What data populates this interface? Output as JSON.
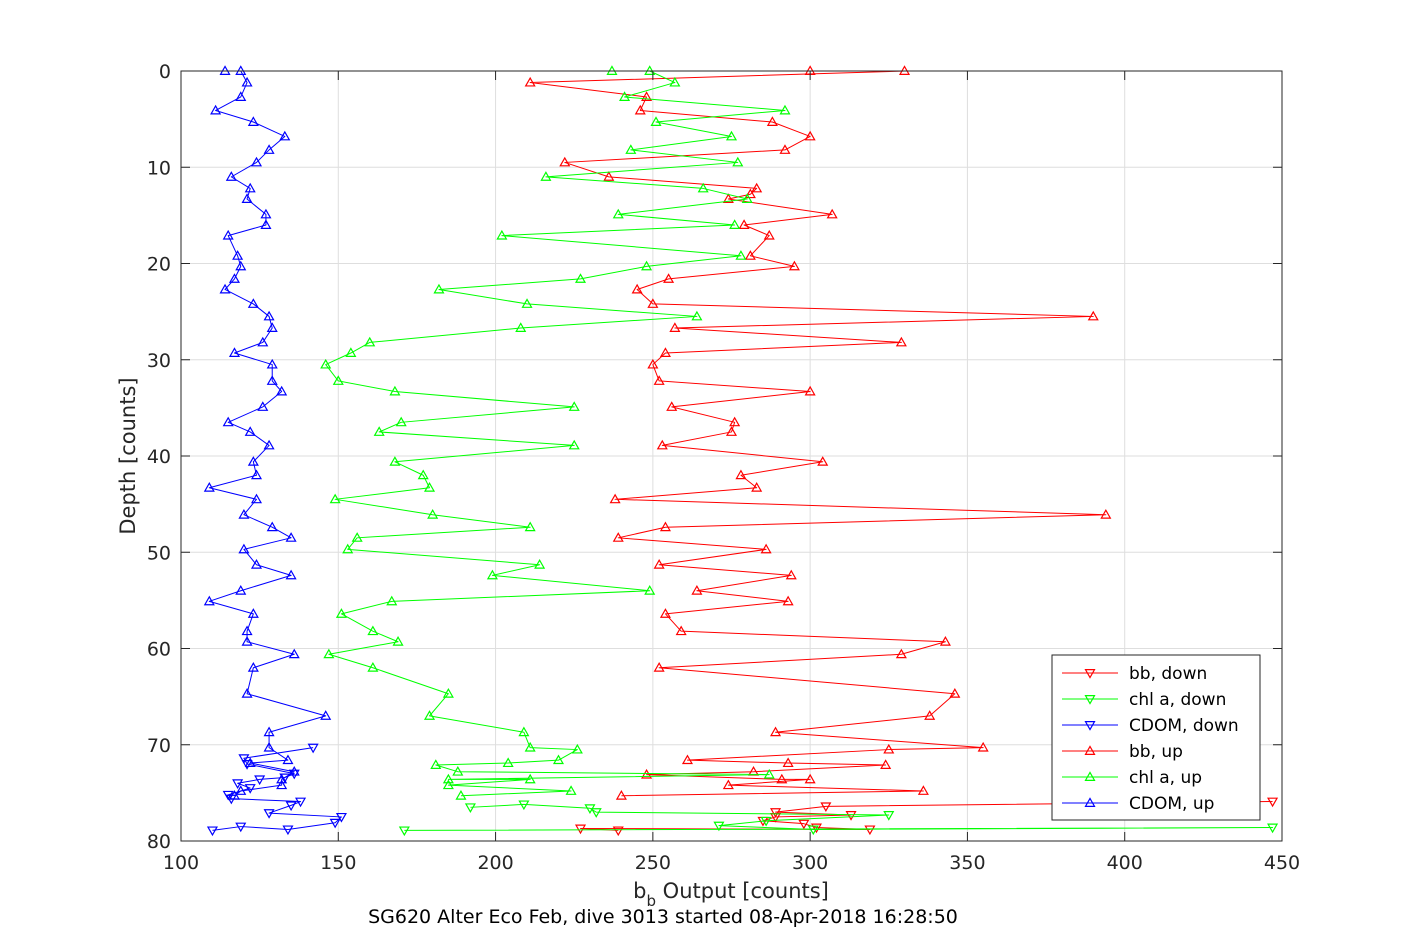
{
  "chart_data": {
    "type": "line",
    "title": "SG620 Alter Eco Feb, dive 3013 started 08-Apr-2018 16:28:50",
    "xlabel_main": "b",
    "xlabel_sub": "b",
    "xlabel_rest": " Output [counts]",
    "ylabel": "Depth [counts]",
    "xlim": [
      100,
      450
    ],
    "ylim": [
      0,
      80
    ],
    "y_reversed": true,
    "grid": true,
    "legend_position": "bottom-right",
    "xticks": [
      "100",
      "150",
      "200",
      "250",
      "300",
      "350",
      "400",
      "450"
    ],
    "yticks": [
      "0",
      "10",
      "20",
      "30",
      "40",
      "50",
      "60",
      "70",
      "80"
    ],
    "series": [
      {
        "name": "bb, down",
        "color": "#ff0000",
        "marker": "triangle-down",
        "points": [
          [
            447,
            75.9
          ],
          [
            305,
            76.4
          ],
          [
            289,
            77.0
          ],
          [
            313,
            77.3
          ],
          [
            289,
            77.5
          ],
          [
            285,
            77.9
          ],
          [
            298,
            78.2
          ],
          [
            302,
            78.6
          ],
          [
            319,
            78.8
          ],
          [
            227,
            78.7
          ],
          [
            239,
            78.9
          ]
        ]
      },
      {
        "name": "chl a, down",
        "color": "#00ff00",
        "marker": "triangle-down",
        "points": [
          [
            171,
            78.9
          ],
          [
            447,
            78.6
          ],
          [
            301,
            78.8
          ],
          [
            271,
            78.4
          ],
          [
            286,
            77.9
          ],
          [
            325,
            77.3
          ],
          [
            232,
            77.0
          ],
          [
            230,
            76.6
          ],
          [
            209,
            76.2
          ],
          [
            192,
            76.5
          ]
        ]
      },
      {
        "name": "CDOM, down",
        "color": "#0000ff",
        "marker": "triangle-down",
        "points": [
          [
            110,
            78.9
          ],
          [
            119,
            78.5
          ],
          [
            134,
            78.8
          ],
          [
            149,
            78.1
          ],
          [
            151,
            77.5
          ],
          [
            128,
            77.1
          ],
          [
            135,
            76.3
          ],
          [
            138,
            75.9
          ],
          [
            116,
            75.6
          ],
          [
            115,
            75.2
          ],
          [
            122,
            74.5
          ],
          [
            118,
            74.0
          ],
          [
            125,
            73.6
          ],
          [
            133,
            73.4
          ],
          [
            136,
            73.0
          ],
          [
            121,
            72.0
          ],
          [
            120,
            71.4
          ],
          [
            142,
            70.3
          ]
        ]
      },
      {
        "name": "bb, up",
        "color": "#ff0000",
        "marker": "triangle-up",
        "points": [
          [
            300,
            0.0
          ],
          [
            330,
            0.0
          ],
          [
            211,
            1.2
          ],
          [
            248,
            2.7
          ],
          [
            246,
            4.1
          ],
          [
            288,
            5.3
          ],
          [
            300,
            6.8
          ],
          [
            292,
            8.2
          ],
          [
            222,
            9.5
          ],
          [
            236,
            11.0
          ],
          [
            283,
            12.2
          ],
          [
            281,
            12.8
          ],
          [
            274,
            13.3
          ],
          [
            307,
            14.9
          ],
          [
            279,
            16.0
          ],
          [
            287,
            17.1
          ],
          [
            281,
            19.2
          ],
          [
            295,
            20.3
          ],
          [
            255,
            21.6
          ],
          [
            245,
            22.7
          ],
          [
            250,
            24.2
          ],
          [
            390,
            25.5
          ],
          [
            257,
            26.7
          ],
          [
            329,
            28.2
          ],
          [
            254,
            29.3
          ],
          [
            250,
            30.5
          ],
          [
            252,
            32.2
          ],
          [
            300,
            33.3
          ],
          [
            256,
            34.9
          ],
          [
            276,
            36.5
          ],
          [
            275,
            37.5
          ],
          [
            253,
            38.9
          ],
          [
            304,
            40.6
          ],
          [
            278,
            42.0
          ],
          [
            283,
            43.3
          ],
          [
            238,
            44.5
          ],
          [
            394,
            46.1
          ],
          [
            254,
            47.4
          ],
          [
            239,
            48.5
          ],
          [
            286,
            49.7
          ],
          [
            252,
            51.3
          ],
          [
            294,
            52.4
          ],
          [
            264,
            54.0
          ],
          [
            293,
            55.1
          ],
          [
            254,
            56.4
          ],
          [
            259,
            58.2
          ],
          [
            343,
            59.3
          ],
          [
            329,
            60.6
          ],
          [
            252,
            62.0
          ],
          [
            346,
            64.7
          ],
          [
            338,
            67.0
          ],
          [
            289,
            68.7
          ],
          [
            355,
            70.3
          ],
          [
            325,
            70.5
          ],
          [
            261,
            71.6
          ],
          [
            293,
            71.9
          ],
          [
            324,
            72.1
          ],
          [
            282,
            72.8
          ],
          [
            248,
            73.1
          ],
          [
            291,
            73.6
          ],
          [
            300,
            73.6
          ],
          [
            274,
            74.2
          ],
          [
            336,
            74.8
          ],
          [
            240,
            75.3
          ]
        ]
      },
      {
        "name": "chl a, up",
        "color": "#00ff00",
        "marker": "triangle-up",
        "points": [
          [
            237,
            0.0
          ],
          [
            249,
            0.0
          ],
          [
            257,
            1.2
          ],
          [
            241,
            2.7
          ],
          [
            292,
            4.1
          ],
          [
            251,
            5.3
          ],
          [
            275,
            6.8
          ],
          [
            243,
            8.2
          ],
          [
            277,
            9.5
          ],
          [
            216,
            11.0
          ],
          [
            266,
            12.2
          ],
          [
            280,
            13.3
          ],
          [
            239,
            14.9
          ],
          [
            276,
            16.0
          ],
          [
            202,
            17.1
          ],
          [
            278,
            19.2
          ],
          [
            248,
            20.3
          ],
          [
            227,
            21.6
          ],
          [
            182,
            22.7
          ],
          [
            210,
            24.2
          ],
          [
            264,
            25.5
          ],
          [
            208,
            26.7
          ],
          [
            160,
            28.2
          ],
          [
            154,
            29.3
          ],
          [
            146,
            30.5
          ],
          [
            150,
            32.2
          ],
          [
            168,
            33.3
          ],
          [
            225,
            34.9
          ],
          [
            170,
            36.5
          ],
          [
            163,
            37.5
          ],
          [
            225,
            38.9
          ],
          [
            168,
            40.6
          ],
          [
            177,
            42.0
          ],
          [
            179,
            43.3
          ],
          [
            149,
            44.5
          ],
          [
            180,
            46.1
          ],
          [
            211,
            47.4
          ],
          [
            156,
            48.5
          ],
          [
            153,
            49.7
          ],
          [
            214,
            51.3
          ],
          [
            199,
            52.4
          ],
          [
            249,
            54.0
          ],
          [
            167,
            55.1
          ],
          [
            151,
            56.4
          ],
          [
            161,
            58.2
          ],
          [
            169,
            59.3
          ],
          [
            147,
            60.6
          ],
          [
            161,
            62.0
          ],
          [
            185,
            64.7
          ],
          [
            179,
            67.0
          ],
          [
            209,
            68.7
          ],
          [
            211,
            70.3
          ],
          [
            226,
            70.5
          ],
          [
            220,
            71.6
          ],
          [
            204,
            71.9
          ],
          [
            181,
            72.1
          ],
          [
            188,
            72.8
          ],
          [
            287,
            73.1
          ],
          [
            185,
            73.6
          ],
          [
            211,
            73.6
          ],
          [
            185,
            74.2
          ],
          [
            224,
            74.8
          ],
          [
            189,
            75.3
          ]
        ]
      },
      {
        "name": "CDOM, up",
        "color": "#0000ff",
        "marker": "triangle-up",
        "points": [
          [
            114,
            0.0
          ],
          [
            119,
            0.0
          ],
          [
            121,
            1.2
          ],
          [
            119,
            2.7
          ],
          [
            111,
            4.1
          ],
          [
            123,
            5.3
          ],
          [
            133,
            6.8
          ],
          [
            128,
            8.2
          ],
          [
            124,
            9.5
          ],
          [
            116,
            11.0
          ],
          [
            122,
            12.2
          ],
          [
            121,
            13.3
          ],
          [
            127,
            14.9
          ],
          [
            127,
            16.0
          ],
          [
            115,
            17.1
          ],
          [
            118,
            19.2
          ],
          [
            119,
            20.3
          ],
          [
            117,
            21.6
          ],
          [
            114,
            22.7
          ],
          [
            123,
            24.2
          ],
          [
            128,
            25.5
          ],
          [
            129,
            26.7
          ],
          [
            126,
            28.2
          ],
          [
            117,
            29.3
          ],
          [
            129,
            30.5
          ],
          [
            129,
            32.2
          ],
          [
            132,
            33.3
          ],
          [
            126,
            34.9
          ],
          [
            115,
            36.5
          ],
          [
            122,
            37.5
          ],
          [
            128,
            38.9
          ],
          [
            123,
            40.6
          ],
          [
            124,
            42.0
          ],
          [
            109,
            43.3
          ],
          [
            124,
            44.5
          ],
          [
            120,
            46.1
          ],
          [
            129,
            47.4
          ],
          [
            135,
            48.5
          ],
          [
            120,
            49.7
          ],
          [
            124,
            51.3
          ],
          [
            135,
            52.4
          ],
          [
            119,
            54.0
          ],
          [
            109,
            55.1
          ],
          [
            123,
            56.4
          ],
          [
            121,
            58.2
          ],
          [
            121,
            59.3
          ],
          [
            136,
            60.6
          ],
          [
            123,
            62.0
          ],
          [
            121,
            64.7
          ],
          [
            146,
            67.0
          ],
          [
            128,
            68.7
          ],
          [
            128,
            70.3
          ],
          [
            134,
            71.6
          ],
          [
            122,
            71.9
          ],
          [
            136,
            72.8
          ],
          [
            132,
            73.6
          ],
          [
            132,
            74.2
          ],
          [
            119,
            74.8
          ],
          [
            117,
            75.3
          ]
        ]
      }
    ]
  }
}
